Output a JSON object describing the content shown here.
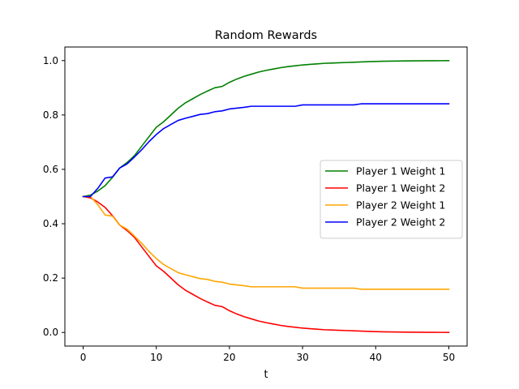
{
  "chart_data": {
    "type": "line",
    "title": "Random Rewards",
    "xlabel": "t",
    "ylabel": "",
    "xlim": [
      -2.5,
      52.5
    ],
    "ylim": [
      -0.05,
      1.05
    ],
    "xticks": [
      0,
      10,
      20,
      30,
      40,
      50
    ],
    "yticks": [
      0.0,
      0.2,
      0.4,
      0.6,
      0.8,
      1.0
    ],
    "xtick_labels": [
      "0",
      "10",
      "20",
      "30",
      "40",
      "50"
    ],
    "ytick_labels": [
      "0.0",
      "0.2",
      "0.4",
      "0.6",
      "0.8",
      "1.0"
    ],
    "grid": false,
    "legend_position": "center-right",
    "x": [
      0,
      1,
      2,
      3,
      4,
      5,
      6,
      7,
      8,
      9,
      10,
      11,
      12,
      13,
      14,
      15,
      16,
      17,
      18,
      19,
      20,
      21,
      22,
      23,
      24,
      25,
      26,
      27,
      28,
      29,
      30,
      31,
      32,
      33,
      34,
      35,
      36,
      37,
      38,
      39,
      40,
      41,
      42,
      43,
      44,
      45,
      46,
      47,
      48,
      49,
      50
    ],
    "series": [
      {
        "name": "Player 1 Weight 1",
        "color": "#008000",
        "values": [
          0.5,
          0.505,
          0.52,
          0.54,
          0.57,
          0.605,
          0.625,
          0.65,
          0.685,
          0.72,
          0.755,
          0.775,
          0.8,
          0.825,
          0.845,
          0.86,
          0.875,
          0.888,
          0.9,
          0.905,
          0.92,
          0.932,
          0.942,
          0.95,
          0.958,
          0.964,
          0.969,
          0.974,
          0.978,
          0.981,
          0.984,
          0.986,
          0.988,
          0.99,
          0.991,
          0.992,
          0.993,
          0.994,
          0.995,
          0.996,
          0.997,
          0.9975,
          0.998,
          0.9984,
          0.9987,
          0.999,
          0.9992,
          0.9994,
          0.9996,
          0.9997,
          0.9998
        ]
      },
      {
        "name": "Player 1 Weight 2",
        "color": "#ff0000",
        "values": [
          0.5,
          0.495,
          0.48,
          0.46,
          0.43,
          0.395,
          0.375,
          0.35,
          0.315,
          0.28,
          0.245,
          0.225,
          0.2,
          0.175,
          0.155,
          0.14,
          0.125,
          0.112,
          0.1,
          0.095,
          0.08,
          0.068,
          0.058,
          0.05,
          0.042,
          0.036,
          0.031,
          0.026,
          0.022,
          0.019,
          0.016,
          0.014,
          0.012,
          0.01,
          0.009,
          0.008,
          0.007,
          0.006,
          0.005,
          0.004,
          0.003,
          0.0025,
          0.002,
          0.0016,
          0.0013,
          0.001,
          0.0008,
          0.0006,
          0.0004,
          0.0003,
          0.0002
        ]
      },
      {
        "name": "Player 2 Weight 1",
        "color": "#ffa500",
        "values": [
          0.5,
          0.5,
          0.47,
          0.432,
          0.428,
          0.395,
          0.38,
          0.355,
          0.328,
          0.298,
          0.272,
          0.25,
          0.235,
          0.22,
          0.212,
          0.205,
          0.198,
          0.195,
          0.188,
          0.185,
          0.178,
          0.175,
          0.172,
          0.168,
          0.168,
          0.168,
          0.168,
          0.168,
          0.168,
          0.168,
          0.163,
          0.163,
          0.163,
          0.163,
          0.163,
          0.163,
          0.163,
          0.163,
          0.159,
          0.159,
          0.159,
          0.159,
          0.159,
          0.159,
          0.159,
          0.159,
          0.159,
          0.159,
          0.159,
          0.159,
          0.159
        ]
      },
      {
        "name": "Player 2 Weight 2",
        "color": "#0000ff",
        "values": [
          0.5,
          0.5,
          0.53,
          0.568,
          0.572,
          0.605,
          0.62,
          0.645,
          0.672,
          0.702,
          0.728,
          0.75,
          0.765,
          0.78,
          0.788,
          0.795,
          0.802,
          0.805,
          0.812,
          0.815,
          0.822,
          0.825,
          0.828,
          0.832,
          0.832,
          0.832,
          0.832,
          0.832,
          0.832,
          0.832,
          0.837,
          0.837,
          0.837,
          0.837,
          0.837,
          0.837,
          0.837,
          0.837,
          0.841,
          0.841,
          0.841,
          0.841,
          0.841,
          0.841,
          0.841,
          0.841,
          0.841,
          0.841,
          0.841,
          0.841,
          0.841
        ]
      }
    ]
  }
}
